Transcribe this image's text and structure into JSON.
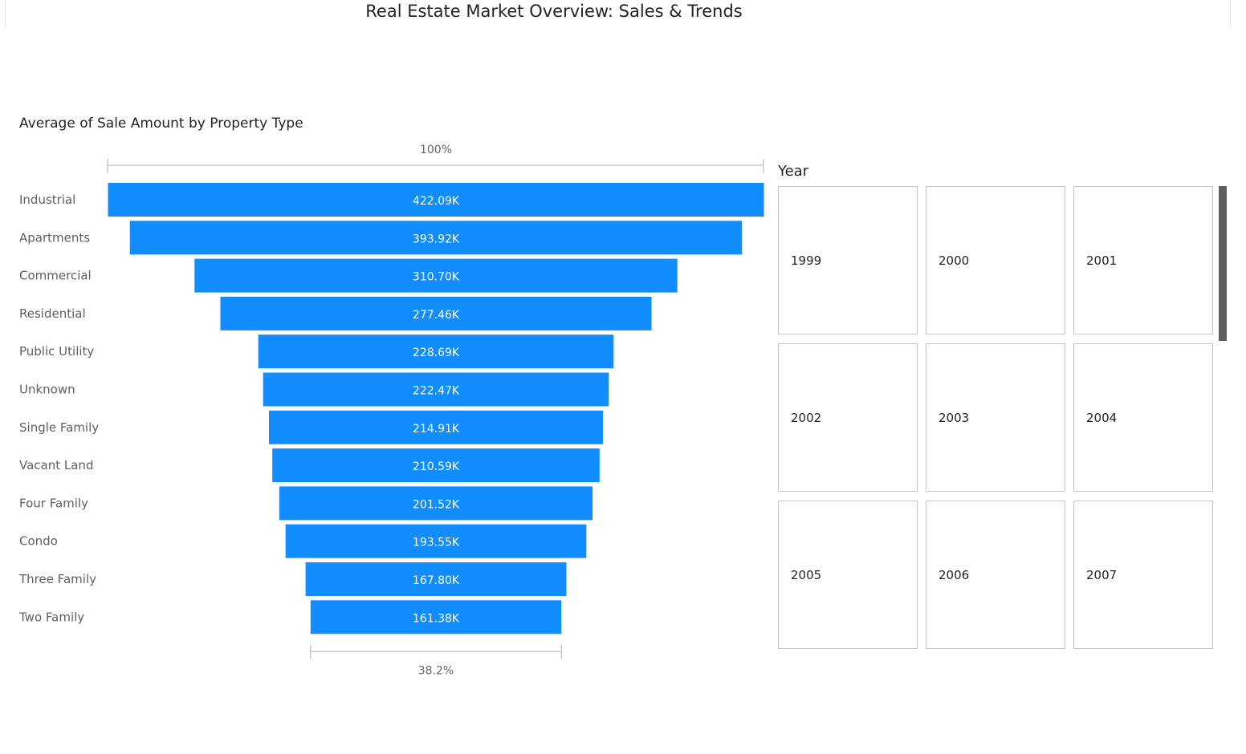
{
  "report": {
    "title": "Real Estate Market Overview: Sales & Trends"
  },
  "funnel": {
    "title": "Average of Sale Amount by Property Type",
    "top_percent_label": "100%",
    "bottom_percent_label": "38.2%"
  },
  "chart_data": {
    "type": "funnel",
    "title": "Average of Sale Amount by Property Type",
    "categories": [
      "Industrial",
      "Apartments",
      "Commercial",
      "Residential",
      "Public Utility",
      "Unknown",
      "Single Family",
      "Vacant Land",
      "Four Family",
      "Condo",
      "Three Family",
      "Two Family"
    ],
    "values": [
      422090,
      393920,
      310700,
      277460,
      228690,
      222470,
      214910,
      210590,
      201520,
      193550,
      167800,
      161380
    ],
    "data_labels": [
      "422.09K",
      "393.92K",
      "310.70K",
      "277.46K",
      "228.69K",
      "222.47K",
      "214.91K",
      "210.59K",
      "201.52K",
      "193.55K",
      "167.80K",
      "161.38K"
    ],
    "top_percent": "100%",
    "bottom_percent": "38.2%",
    "bar_color": "#118DFF"
  },
  "slicer": {
    "title": "Year",
    "years": [
      "1999",
      "2000",
      "2001",
      "2002",
      "2003",
      "2004",
      "2005",
      "2006",
      "2007"
    ]
  }
}
